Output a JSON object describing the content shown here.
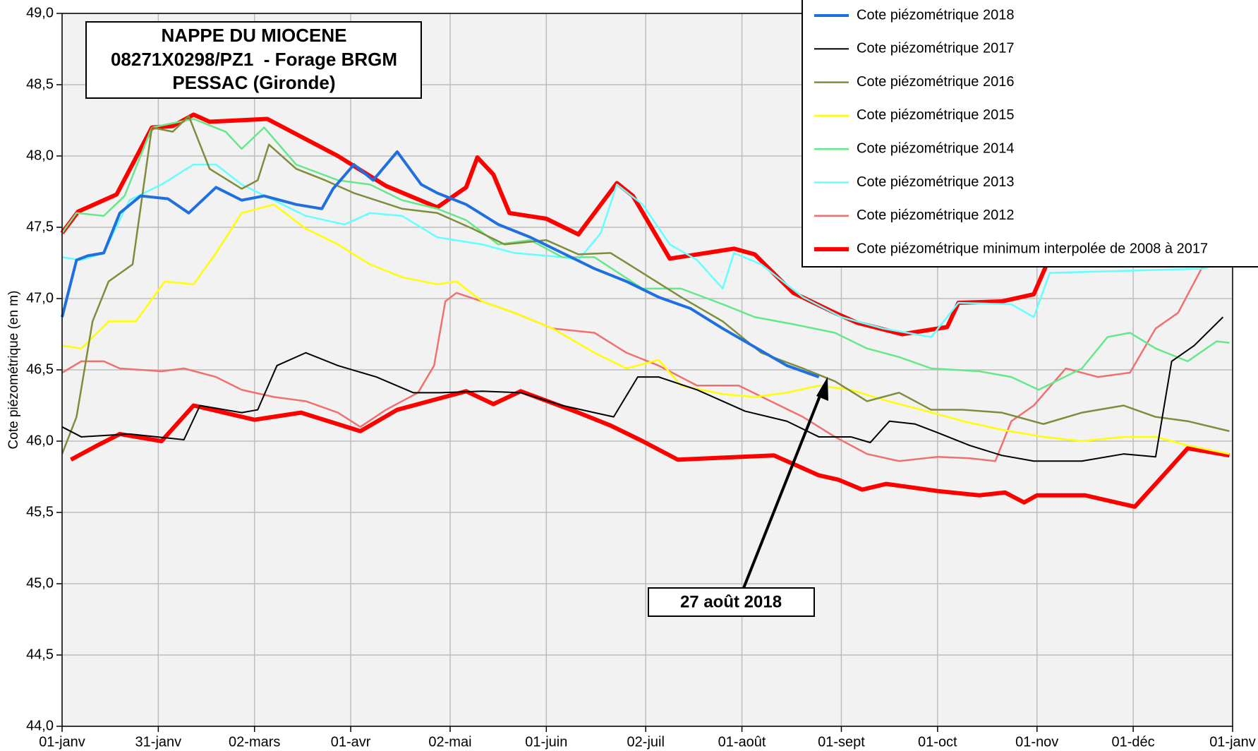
{
  "chart_data": {
    "type": "line",
    "title": [
      "NAPPE DU MIOCENE",
      "08271X0298/PZ1  - Forage BRGM",
      "PESSAC (Gironde)"
    ],
    "y_label": "Cote piézométrique (en m)",
    "annotation": "27 août 2018",
    "legend": "upper right",
    "grid": true,
    "xlim": [
      0,
      365
    ],
    "xticks": [
      {
        "value": 0,
        "label": "01-janv"
      },
      {
        "value": 30,
        "label": "31-janv"
      },
      {
        "value": 60,
        "label": "02-mars"
      },
      {
        "value": 90,
        "label": "01-avr"
      },
      {
        "value": 121,
        "label": "02-mai"
      },
      {
        "value": 151,
        "label": "01-juin"
      },
      {
        "value": 182,
        "label": "02-juil"
      },
      {
        "value": 212,
        "label": "01-août"
      },
      {
        "value": 243,
        "label": "01-sept"
      },
      {
        "value": 273,
        "label": "01-oct"
      },
      {
        "value": 304,
        "label": "01-nov"
      },
      {
        "value": 334,
        "label": "01-déc"
      },
      {
        "value": 365,
        "label": "01-janv"
      }
    ],
    "ylim": [
      44,
      49
    ],
    "yticks": [
      {
        "value": 44,
        "label": "44,0"
      },
      {
        "value": 44.5,
        "label": "44,5"
      },
      {
        "value": 45,
        "label": "45,0"
      },
      {
        "value": 45.5,
        "label": "45,5"
      },
      {
        "value": 46,
        "label": "46,0"
      },
      {
        "value": 46.5,
        "label": "46,5"
      },
      {
        "value": 47,
        "label": "47,0"
      },
      {
        "value": 47.5,
        "label": "47,5"
      },
      {
        "value": 48,
        "label": "48,0"
      },
      {
        "value": 48.5,
        "label": "48,5"
      },
      {
        "value": 49,
        "label": "49,0"
      }
    ],
    "series": [
      {
        "name": "Cote piézométrique 2018",
        "color": "#1f6fe0",
        "width": 4,
        "x": [
          0,
          4.5,
          8,
          13,
          18,
          24.5,
          33,
          39.5,
          48,
          56,
          63,
          73,
          81,
          84.5,
          91,
          97,
          104.5,
          112,
          117,
          126,
          136,
          146,
          156,
          166,
          176,
          186,
          196,
          206,
          216,
          226,
          236
        ],
        "values": [
          46.87,
          47.27,
          47.3,
          47.32,
          47.6,
          47.72,
          47.7,
          47.6,
          47.78,
          47.69,
          47.72,
          47.66,
          47.63,
          47.77,
          47.94,
          47.83,
          48.03,
          47.8,
          47.74,
          47.66,
          47.52,
          47.43,
          47.32,
          47.21,
          47.12,
          47.01,
          46.93,
          46.79,
          46.66,
          46.53,
          46.45
        ]
      },
      {
        "name": "Cote piézométrique 2017",
        "color": "#000000",
        "width": 2,
        "x": [
          0,
          6,
          21,
          38,
          43,
          56,
          61,
          67,
          76,
          86,
          98,
          109.5,
          118,
          131,
          143,
          156,
          166,
          172,
          179.5,
          186,
          198,
          213,
          226,
          236,
          246,
          252,
          258,
          266,
          273,
          283,
          293,
          303,
          318,
          331,
          341,
          346,
          353,
          362
        ],
        "values": [
          46.1,
          46.03,
          46.05,
          46.01,
          46.25,
          46.2,
          46.22,
          46.53,
          46.62,
          46.53,
          46.45,
          46.34,
          46.34,
          46.35,
          46.34,
          46.25,
          46.2,
          46.17,
          46.45,
          46.45,
          46.36,
          46.21,
          46.14,
          46.03,
          46.03,
          45.99,
          46.14,
          46.12,
          46.06,
          45.97,
          45.9,
          45.86,
          45.86,
          45.91,
          45.89,
          46.56,
          46.67,
          46.87
        ]
      },
      {
        "name": "Cote piézométrique 2016",
        "color": "#7f8c3a",
        "width": 2.5,
        "x": [
          0,
          4.5,
          9.5,
          14.5,
          22,
          28,
          34.5,
          39.5,
          46,
          56,
          61,
          64.5,
          73,
          82,
          91,
          106,
          117,
          128,
          138,
          151,
          161,
          171,
          181,
          193,
          206,
          218,
          231,
          241,
          251,
          261,
          271,
          281,
          293,
          306,
          318,
          331,
          341,
          351,
          364
        ],
        "values": [
          45.91,
          46.17,
          46.84,
          47.12,
          47.24,
          48.2,
          48.17,
          48.28,
          47.91,
          47.77,
          47.83,
          48.08,
          47.91,
          47.83,
          47.74,
          47.63,
          47.6,
          47.49,
          47.38,
          47.41,
          47.31,
          47.32,
          47.18,
          47.01,
          46.84,
          46.62,
          46.51,
          46.42,
          46.28,
          46.34,
          46.22,
          46.22,
          46.2,
          46.12,
          46.2,
          46.25,
          46.17,
          46.14,
          46.07
        ]
      },
      {
        "name": "Cote piézométrique 2015",
        "color": "#ffff00",
        "width": 2.5,
        "x": [
          0,
          6,
          14.5,
          23,
          32,
          41,
          48,
          56,
          66,
          76,
          86,
          96,
          106,
          117,
          123,
          131,
          141,
          153,
          166,
          176,
          186,
          193,
          206,
          216,
          226,
          236,
          246,
          256,
          268,
          281,
          293,
          306,
          318,
          331,
          341,
          351,
          364
        ],
        "values": [
          46.67,
          46.65,
          46.84,
          46.84,
          47.12,
          47.1,
          47.32,
          47.6,
          47.66,
          47.49,
          47.38,
          47.24,
          47.15,
          47.1,
          47.12,
          46.98,
          46.9,
          46.79,
          46.62,
          46.51,
          46.57,
          46.39,
          46.33,
          46.31,
          46.34,
          46.39,
          46.36,
          46.29,
          46.22,
          46.14,
          46.08,
          46.03,
          46.0,
          46.03,
          46.03,
          45.97,
          45.91
        ]
      },
      {
        "name": "Cote piézométrique 2014",
        "color": "#66e88a",
        "width": 2.5,
        "x": [
          0,
          4.5,
          13,
          19.5,
          28,
          41,
          51,
          56,
          63,
          73,
          86,
          96,
          106,
          117,
          126,
          136,
          146,
          156,
          166,
          181,
          193,
          206,
          216,
          228,
          241,
          251,
          261,
          271,
          286,
          296,
          304.5,
          318,
          326,
          333,
          341,
          351,
          360,
          364
        ],
        "values": [
          47.46,
          47.6,
          47.58,
          47.72,
          48.2,
          48.26,
          48.17,
          48.05,
          48.2,
          47.94,
          47.83,
          47.8,
          47.69,
          47.63,
          47.55,
          47.38,
          47.41,
          47.29,
          47.29,
          47.07,
          47.07,
          46.96,
          46.87,
          46.82,
          46.76,
          46.65,
          46.59,
          46.51,
          46.49,
          46.45,
          46.36,
          46.51,
          46.73,
          46.76,
          46.65,
          46.56,
          46.7,
          46.69
        ]
      },
      {
        "name": "Cote piézométrique 2013",
        "color": "#66ffff",
        "width": 2.5,
        "x": [
          0,
          6,
          13,
          21,
          31,
          41,
          48,
          56,
          66,
          76,
          88,
          96,
          106,
          117,
          131,
          141,
          156,
          161,
          168,
          173,
          181,
          189.5,
          198,
          206,
          209.5,
          218,
          231,
          243,
          256,
          271,
          279.5,
          296,
          303,
          308,
          356,
          364
        ],
        "values": [
          47.29,
          47.27,
          47.32,
          47.69,
          47.8,
          47.94,
          47.94,
          47.8,
          47.69,
          47.58,
          47.52,
          47.6,
          47.58,
          47.43,
          47.38,
          47.32,
          47.29,
          47.27,
          47.46,
          47.8,
          47.66,
          47.38,
          47.27,
          47.07,
          47.32,
          47.24,
          47.01,
          46.87,
          46.79,
          46.73,
          46.97,
          46.96,
          46.87,
          47.18,
          47.21,
          47.27
        ]
      },
      {
        "name": "Cote piézométrique 2012",
        "color": "#f07070",
        "width": 2.5,
        "x": [
          0,
          6,
          13,
          18,
          31,
          38,
          48,
          56,
          66,
          76,
          86,
          93,
          101,
          111,
          116,
          119.5,
          123,
          131,
          141,
          153,
          166,
          176,
          186,
          198,
          211,
          221,
          231,
          241,
          251,
          261,
          273,
          283,
          291,
          296,
          303,
          313,
          323,
          333,
          341,
          348,
          356,
          364
        ],
        "values": [
          46.48,
          46.56,
          46.56,
          46.51,
          46.49,
          46.51,
          46.45,
          46.36,
          46.31,
          46.28,
          46.2,
          46.1,
          46.22,
          46.34,
          46.53,
          46.98,
          47.04,
          46.98,
          46.9,
          46.79,
          46.76,
          46.62,
          46.53,
          46.39,
          46.39,
          46.28,
          46.17,
          46.03,
          45.91,
          45.86,
          45.89,
          45.88,
          45.86,
          46.14,
          46.25,
          46.51,
          46.45,
          46.48,
          46.79,
          46.9,
          47.24,
          47.32
        ]
      },
      {
        "name": "Cote piézométrique minimum interpolée de 2008 à 2017",
        "color": "#ff0000",
        "width": 6,
        "x": [
          2.75,
          11,
          18,
          31,
          41,
          60,
          74.5,
          93,
          104.5,
          126,
          134.5,
          143,
          161,
          171,
          181,
          192,
          222,
          236,
          242,
          249.5,
          257,
          273,
          286,
          294,
          300,
          304,
          319,
          334.5,
          343,
          351,
          364
        ],
        "values": [
          45.87,
          45.97,
          46.05,
          46.0,
          46.25,
          46.15,
          46.2,
          46.07,
          46.22,
          46.35,
          46.26,
          46.35,
          46.2,
          46.11,
          46.0,
          45.87,
          45.9,
          45.76,
          45.73,
          45.66,
          45.7,
          45.65,
          45.62,
          45.64,
          45.57,
          45.62,
          45.62,
          45.54,
          45.75,
          45.95,
          45.9
        ]
      },
      {
        "color": "#ff0000",
        "width": 6,
        "x": [
          0,
          5,
          17,
          28,
          34.5,
          41,
          46,
          64,
          86,
          101,
          117,
          126,
          129.5,
          134.5,
          139.5,
          151,
          161,
          173,
          178,
          189.5,
          209.5,
          216,
          228,
          241,
          248,
          262,
          276,
          279.5,
          293,
          303,
          308,
          356,
          363
        ],
        "values": [
          47.46,
          47.61,
          47.73,
          48.2,
          48.21,
          48.29,
          48.24,
          48.26,
          48.0,
          47.79,
          47.64,
          47.78,
          47.99,
          47.87,
          47.6,
          47.56,
          47.45,
          47.81,
          47.72,
          47.28,
          47.35,
          47.31,
          47.04,
          46.9,
          46.83,
          46.75,
          46.8,
          46.97,
          46.98,
          47.03,
          47.29,
          47.27,
          47.24
        ]
      }
    ]
  }
}
